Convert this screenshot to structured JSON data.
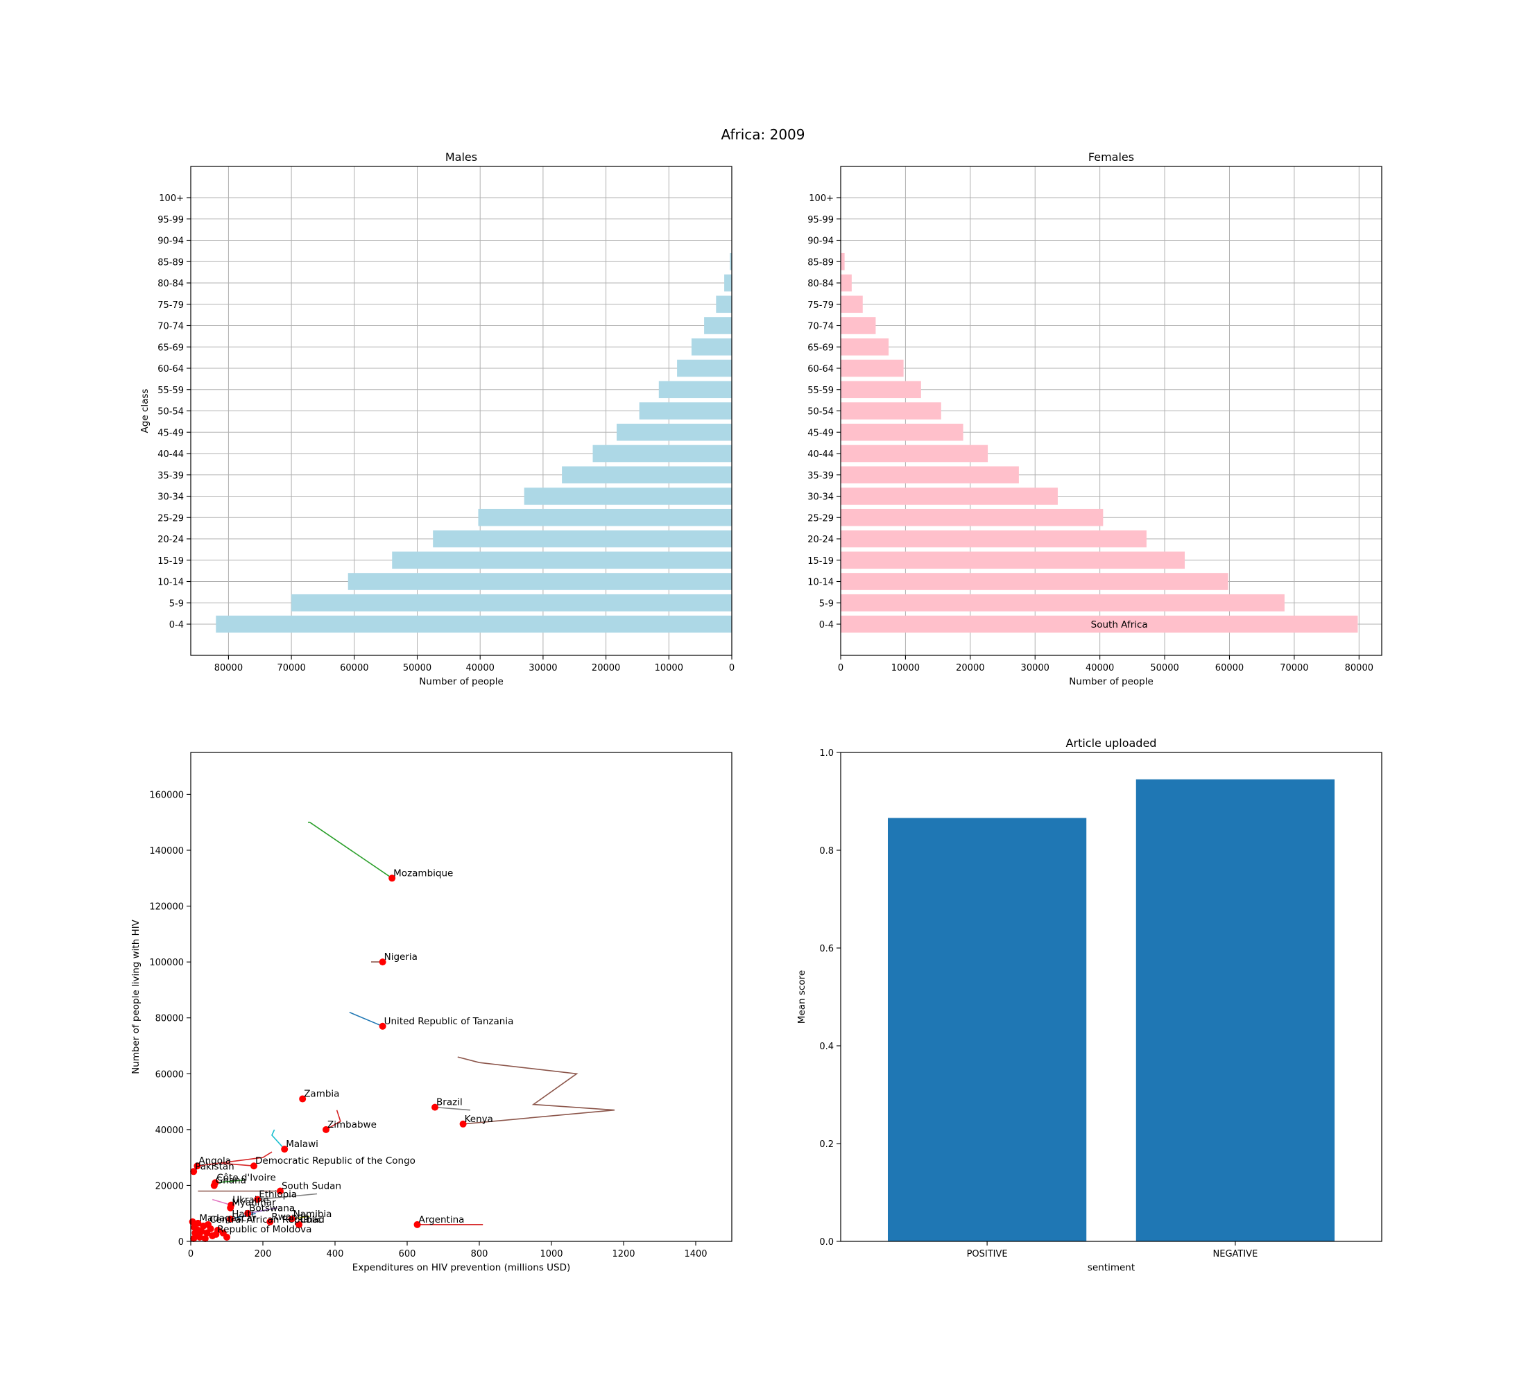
{
  "figure": {
    "title": "Africa: 2009"
  },
  "chart_data": [
    {
      "id": "males",
      "type": "bar",
      "orientation": "horizontal",
      "title": "Males",
      "xlabel": "Number of people",
      "ylabel": "Age class",
      "xlim": [
        86000,
        0
      ],
      "x_inverted": true,
      "xticks": [
        80000,
        70000,
        60000,
        50000,
        40000,
        30000,
        20000,
        10000,
        0
      ],
      "grid": true,
      "color": "#add8e6",
      "categories": [
        "0-4",
        "5-9",
        "10-14",
        "15-19",
        "20-24",
        "25-29",
        "30-34",
        "35-39",
        "40-44",
        "45-49",
        "50-54",
        "55-59",
        "60-64",
        "65-69",
        "70-74",
        "75-79",
        "80-84",
        "85-89",
        "90-94",
        "95-99",
        "100+"
      ],
      "values": [
        82000,
        70000,
        61000,
        54000,
        47500,
        40300,
        33000,
        27000,
        22100,
        18300,
        14700,
        11600,
        8700,
        6400,
        4400,
        2500,
        1200,
        300,
        0,
        0,
        0
      ]
    },
    {
      "id": "females",
      "type": "bar",
      "orientation": "horizontal",
      "title": "Females",
      "xlabel": "Number of people",
      "ylabel": "",
      "xlim": [
        0,
        83500
      ],
      "xticks": [
        0,
        10000,
        20000,
        30000,
        40000,
        50000,
        60000,
        70000,
        80000
      ],
      "grid": true,
      "color": "#ffc0cb",
      "categories": [
        "0-4",
        "5-9",
        "10-14",
        "15-19",
        "20-24",
        "25-29",
        "30-34",
        "35-39",
        "40-44",
        "45-49",
        "50-54",
        "55-59",
        "60-64",
        "65-69",
        "70-74",
        "75-79",
        "80-84",
        "85-89",
        "90-94",
        "95-99",
        "100+"
      ],
      "values": [
        79800,
        68500,
        59800,
        53100,
        47200,
        40500,
        33500,
        27500,
        22700,
        18900,
        15500,
        12400,
        9700,
        7400,
        5400,
        3400,
        1700,
        600,
        0,
        0,
        0
      ],
      "annotation": {
        "text": "South Africa",
        "x": 43000,
        "category": "0-4"
      }
    },
    {
      "id": "hiv",
      "type": "scatter",
      "title": "",
      "xlabel": "Expenditures on HIV prevention (millions USD)",
      "ylabel": "Number of people living with HIV",
      "xlim": [
        0,
        1500
      ],
      "ylim": [
        0,
        175000
      ],
      "xticks": [
        0,
        200,
        400,
        600,
        800,
        1000,
        1200,
        1400
      ],
      "yticks": [
        0,
        20000,
        40000,
        60000,
        80000,
        100000,
        120000,
        140000,
        160000
      ],
      "grid": false,
      "marker_color": "#ff0000",
      "points": [
        {
          "label": "Mozambique",
          "x": 558,
          "y": 130000
        },
        {
          "label": "Nigeria",
          "x": 532,
          "y": 100000
        },
        {
          "label": "United Republic of Tanzania",
          "x": 532,
          "y": 77000
        },
        {
          "label": "Zambia",
          "x": 310,
          "y": 51000
        },
        {
          "label": "Brazil",
          "x": 677,
          "y": 48000
        },
        {
          "label": "Kenya",
          "x": 755,
          "y": 42000
        },
        {
          "label": "Zimbabwe",
          "x": 375,
          "y": 40000
        },
        {
          "label": "Malawi",
          "x": 260,
          "y": 33000
        },
        {
          "label": "Democratic Republic of the Congo",
          "x": 175,
          "y": 27000
        },
        {
          "label": "Angola",
          "x": 18,
          "y": 27000
        },
        {
          "label": "Pakistan",
          "x": 8,
          "y": 25000
        },
        {
          "label": "Côte d'Ivoire",
          "x": 68,
          "y": 21000
        },
        {
          "label": "Ghana",
          "x": 65,
          "y": 20000
        },
        {
          "label": "South Sudan",
          "x": 248,
          "y": 18000
        },
        {
          "label": "Ethiopia",
          "x": 185,
          "y": 15000
        },
        {
          "label": "Ukraine",
          "x": 112,
          "y": 13000
        },
        {
          "label": "Myanmar",
          "x": 110,
          "y": 12000
        },
        {
          "label": "Botswana",
          "x": 158,
          "y": 10000
        },
        {
          "label": "Haiti",
          "x": 110,
          "y": 8000
        },
        {
          "label": "Namibia",
          "x": 280,
          "y": 8000
        },
        {
          "label": "Rwanda",
          "x": 220,
          "y": 7000
        },
        {
          "label": "Chad",
          "x": 300,
          "y": 6000
        },
        {
          "label": "Argentina",
          "x": 628,
          "y": 6000
        },
        {
          "label": "Central African Republic",
          "x": 48,
          "y": 6000
        },
        {
          "label": "Madagascar",
          "x": 20,
          "y": 6500
        },
        {
          "label": "Republic of Moldova",
          "x": 70,
          "y": 2500
        }
      ],
      "extra_points": [
        {
          "x": 5,
          "y": 7000
        },
        {
          "x": 10,
          "y": 5000
        },
        {
          "x": 20,
          "y": 4000
        },
        {
          "x": 30,
          "y": 3500
        },
        {
          "x": 45,
          "y": 3000
        },
        {
          "x": 60,
          "y": 2000
        },
        {
          "x": 15,
          "y": 2000
        },
        {
          "x": 25,
          "y": 1500
        },
        {
          "x": 40,
          "y": 1000
        },
        {
          "x": 8,
          "y": 1000
        },
        {
          "x": 55,
          "y": 4500
        },
        {
          "x": 90,
          "y": 3000
        },
        {
          "x": 100,
          "y": 1500
        },
        {
          "x": 12,
          "y": 3000
        },
        {
          "x": 35,
          "y": 5500
        },
        {
          "x": 75,
          "y": 4000
        }
      ],
      "trails": [
        {
          "color": "#2ca02c",
          "points": [
            [
              558,
              130000
            ],
            [
              330,
              150000
            ],
            [
              325,
              150000
            ]
          ]
        },
        {
          "color": "#8c564b",
          "points": [
            [
              755,
              42000
            ],
            [
              1175,
              47000
            ],
            [
              950,
              49000
            ],
            [
              1070,
              60000
            ],
            [
              800,
              64000
            ],
            [
              740,
              66000
            ]
          ]
        },
        {
          "color": "#1f77b4",
          "points": [
            [
              532,
              77000
            ],
            [
              440,
              82000
            ]
          ]
        },
        {
          "color": "#8c564b",
          "points": [
            [
              532,
              100000
            ],
            [
              500,
              100000
            ]
          ]
        },
        {
          "color": "#7f7f7f",
          "points": [
            [
              677,
              48000
            ],
            [
              775,
              47000
            ]
          ]
        },
        {
          "color": "#d62728",
          "points": [
            [
              375,
              40000
            ],
            [
              415,
              43000
            ],
            [
              405,
              47000
            ]
          ]
        },
        {
          "color": "#17becf",
          "points": [
            [
              260,
              33000
            ],
            [
              225,
              38000
            ],
            [
              232,
              40000
            ]
          ]
        },
        {
          "color": "#d62728",
          "points": [
            [
              18,
              27000
            ],
            [
              200,
              30000
            ],
            [
              225,
              32000
            ]
          ]
        },
        {
          "color": "#d62728",
          "points": [
            [
              175,
              27000
            ],
            [
              80,
              28000
            ]
          ]
        },
        {
          "color": "#8c564b",
          "points": [
            [
              248,
              18000
            ],
            [
              20,
              18000
            ]
          ]
        },
        {
          "color": "#7f7f7f",
          "points": [
            [
              185,
              15000
            ],
            [
              350,
              17000
            ]
          ]
        },
        {
          "color": "#e377c2",
          "points": [
            [
              112,
              13000
            ],
            [
              60,
              15000
            ]
          ]
        },
        {
          "color": "#9467bd",
          "points": [
            [
              158,
              10000
            ],
            [
              240,
              12000
            ]
          ]
        },
        {
          "color": "#d62728",
          "points": [
            [
              628,
              6000
            ],
            [
              810,
              6000
            ]
          ]
        },
        {
          "color": "#bcbd22",
          "points": [
            [
              280,
              8000
            ],
            [
              330,
              9000
            ]
          ]
        },
        {
          "color": "#1f77b4",
          "points": [
            [
              110,
              8000
            ],
            [
              180,
              10000
            ]
          ]
        },
        {
          "color": "#2ca02c",
          "points": [
            [
              68,
              21000
            ],
            [
              150,
              22000
            ]
          ]
        }
      ]
    },
    {
      "id": "sentiment",
      "type": "bar",
      "orientation": "vertical",
      "title": "Article uploaded",
      "xlabel": "sentiment",
      "ylabel": "Mean score",
      "ylim": [
        0,
        1.0
      ],
      "yticks": [
        0.0,
        0.2,
        0.4,
        0.6,
        0.8,
        1.0
      ],
      "ytick_labels": [
        "0.0",
        "0.2",
        "0.4",
        "0.6",
        "0.8",
        "1.0"
      ],
      "grid": false,
      "color": "#1f77b4",
      "categories": [
        "POSITIVE",
        "NEGATIVE"
      ],
      "values": [
        0.866,
        0.945
      ]
    }
  ]
}
